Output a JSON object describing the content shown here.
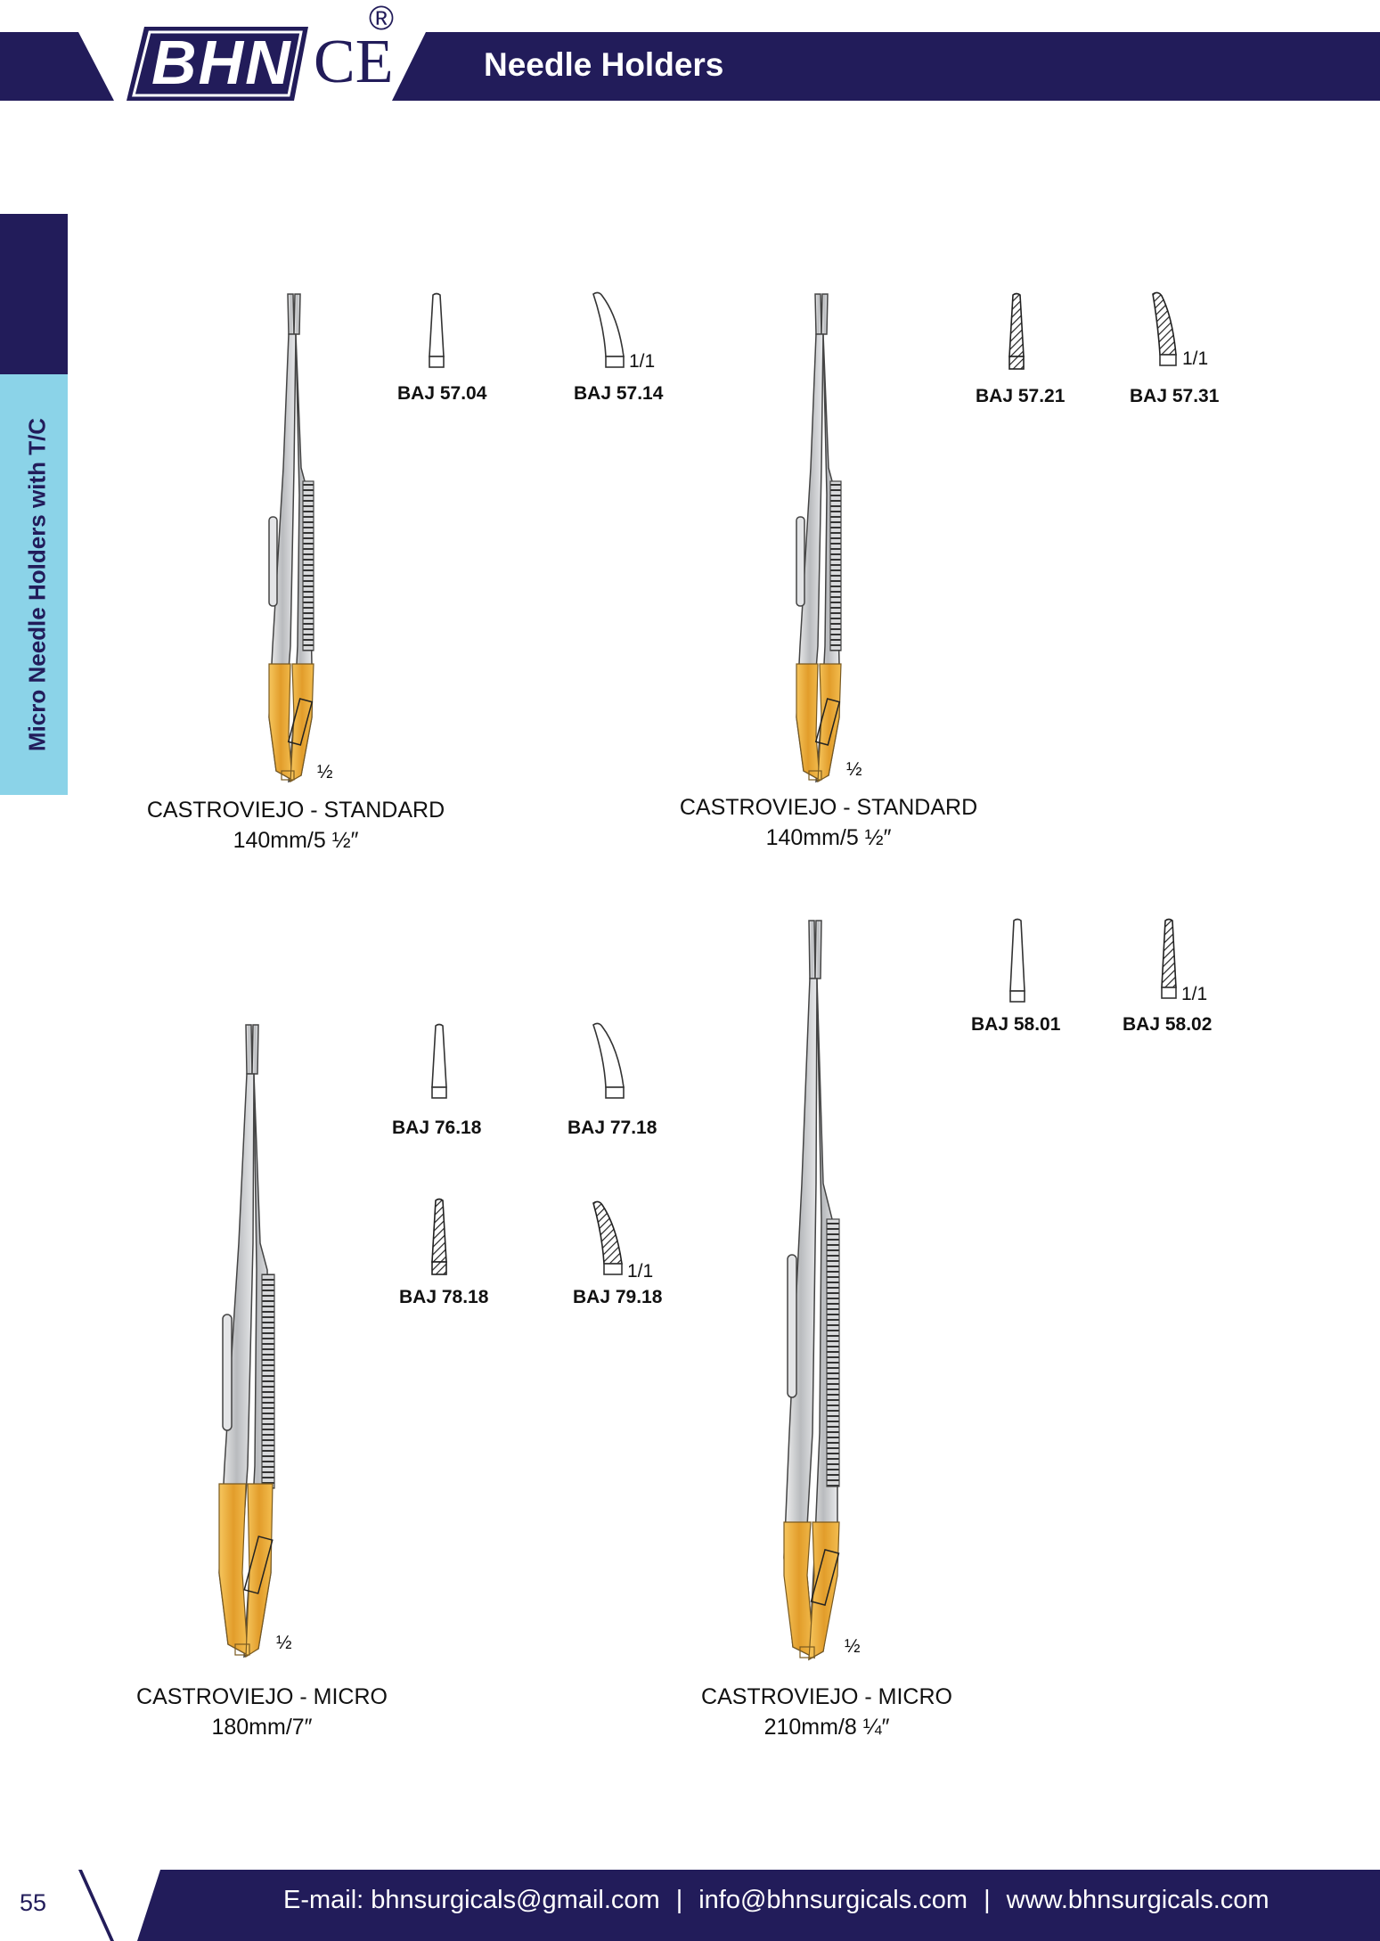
{
  "header": {
    "brand": "BHN",
    "ce_mark": "CE",
    "registered_mark": "®",
    "title": "Needle Holders"
  },
  "sidebar": {
    "section": "Micro Needle Holders with T/C"
  },
  "colors": {
    "navy": "#221c5a",
    "sidebar_tab": "#8bd3e8",
    "gold": "#e6a532",
    "steel": "#c9cbce"
  },
  "products": [
    {
      "name": "CASTROVIEJO - STANDARD",
      "size": "140mm/5 ½″",
      "scale": "½",
      "tips": [
        {
          "code": "BAJ 57.04",
          "shape": "straight-smooth-tip-icon",
          "scale": ""
        },
        {
          "code": "BAJ 57.14",
          "shape": "curved-smooth-tip-icon",
          "scale": "1/1"
        }
      ]
    },
    {
      "name": "CASTROVIEJO - STANDARD",
      "size": "140mm/5 ½″",
      "scale": "½",
      "tips": [
        {
          "code": "BAJ 57.21",
          "shape": "straight-serrated-tip-icon",
          "scale": ""
        },
        {
          "code": "BAJ 57.31",
          "shape": "curved-serrated-tip-icon",
          "scale": "1/1"
        }
      ]
    },
    {
      "name": "CASTROVIEJO - MICRO",
      "size": "180mm/7″",
      "scale": "½",
      "tips": [
        {
          "code": "BAJ 76.18",
          "shape": "straight-smooth-tip-icon",
          "scale": ""
        },
        {
          "code": "BAJ 77.18",
          "shape": "curved-smooth-tip-icon",
          "scale": ""
        },
        {
          "code": "BAJ 78.18",
          "shape": "straight-serrated-tip-icon",
          "scale": ""
        },
        {
          "code": "BAJ 79.18",
          "shape": "curved-serrated-tip-icon",
          "scale": "1/1"
        }
      ]
    },
    {
      "name": "CASTROVIEJO - MICRO",
      "size": "210mm/8 ¼″",
      "scale": "½",
      "tips": [
        {
          "code": "BAJ 58.01",
          "shape": "straight-smooth-tip-icon",
          "scale": ""
        },
        {
          "code": "BAJ 58.02",
          "shape": "straight-serrated-tip-icon",
          "scale": "1/1"
        }
      ]
    }
  ],
  "footer": {
    "page_number": "55",
    "email_1": "E-mail: bhnsurgicals@gmail.com",
    "separator": "|",
    "email_2": "info@bhnsurgicals.com",
    "website": "www.bhnsurgicals.com"
  }
}
